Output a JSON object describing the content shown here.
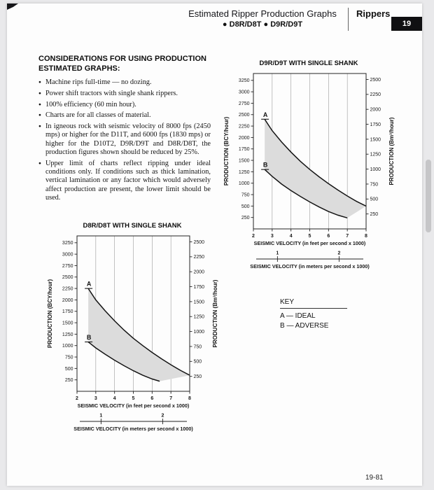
{
  "header": {
    "title": "Estimated Ripper Production Graphs",
    "models": "● D8R/D8T    ● D9R/D9T",
    "section": "Rippers",
    "tab_number": "19",
    "page_number": "19-81"
  },
  "considerations": {
    "heading": "CONSIDERATIONS FOR USING PRODUCTION ESTIMATED GRAPHS:",
    "items": [
      "Machine rips full-time — no dozing.",
      "Power shift tractors with single shank rippers.",
      "100% efficiency (60 min hour).",
      "Charts are for all classes of material.",
      "In igneous rock with seismic velocity of 8000 fps (2450 mps) or higher for the D11T, and 6000 fps (1830 mps) or higher for the D10T2, D9R/D9T and D8R/D8T, the production figures shown should be reduced by 25%.",
      "Upper limit of charts reflect ripping under ideal conditions only. If conditions such as thick lamination, vertical lamination or any factor which would adversely affect production are present, the lower limit should be used."
    ]
  },
  "key": {
    "title": "KEY",
    "entries": [
      "A — IDEAL",
      "B — ADVERSE"
    ]
  },
  "chart_data": [
    {
      "type": "line",
      "title": "D9R/D9T WITH SINGLE SHANK",
      "xlabel": "SEISMIC VELOCITY (in feet per second x 1000)",
      "xlabel_secondary": "SEISMIC VELOCITY (in meters per second x 1000)",
      "ylabel_left": "PRODUCTION (BCY/hour)",
      "ylabel_right": "PRODUCTION (Bm³/hour)",
      "xlim": [
        2,
        8
      ],
      "ylim": [
        0,
        3400
      ],
      "x_ticks": [
        2,
        3,
        4,
        5,
        6,
        7,
        8
      ],
      "y_ticks_left": [
        250,
        500,
        750,
        1000,
        1250,
        1500,
        1750,
        2000,
        2250,
        2500,
        2750,
        3000,
        3250
      ],
      "y_ticks_right": [
        250,
        500,
        750,
        1000,
        1250,
        1500,
        1750,
        2000,
        2250,
        2500
      ],
      "bcy_per_bm3": 1.308,
      "secondary_ticks": [
        1,
        2
      ],
      "fps_per_mps": 3.281,
      "grid": "vertical",
      "legend_position": "separate-key-box",
      "band_fill": "#dcdcdc",
      "series": [
        {
          "name": "A",
          "meaning": "IDEAL",
          "points": [
            [
              2.6,
              2400
            ],
            [
              3,
              2150
            ],
            [
              3.5,
              1900
            ],
            [
              4,
              1680
            ],
            [
              4.5,
              1480
            ],
            [
              5,
              1300
            ],
            [
              5.5,
              1140
            ],
            [
              6,
              990
            ],
            [
              6.5,
              850
            ],
            [
              7,
              720
            ],
            [
              7.5,
              600
            ],
            [
              8,
              500
            ]
          ]
        },
        {
          "name": "B",
          "meaning": "ADVERSE",
          "points": [
            [
              2.6,
              1300
            ],
            [
              3,
              1150
            ],
            [
              3.5,
              980
            ],
            [
              4,
              840
            ],
            [
              4.5,
              710
            ],
            [
              5,
              590
            ],
            [
              5.5,
              480
            ],
            [
              6,
              380
            ],
            [
              6.5,
              300
            ],
            [
              7,
              240
            ]
          ]
        }
      ]
    },
    {
      "type": "line",
      "title": "D8R/D8T WITH SINGLE SHANK",
      "xlabel": "SEISMIC VELOCITY (in feet per second x 1000)",
      "xlabel_secondary": "SEISMIC VELOCITY (in meters per second x 1000)",
      "ylabel_left": "PRODUCTION (BCY/hour)",
      "ylabel_right": "PRODUCTION (Bm³/hour)",
      "xlim": [
        2,
        8
      ],
      "ylim": [
        0,
        3400
      ],
      "x_ticks": [
        2,
        3,
        4,
        5,
        6,
        7,
        8
      ],
      "y_ticks_left": [
        250,
        500,
        750,
        1000,
        1250,
        1500,
        1750,
        2000,
        2250,
        2500,
        2750,
        3000,
        3250
      ],
      "y_ticks_right": [
        250,
        500,
        750,
        1000,
        1250,
        1500,
        1750,
        2000,
        2250,
        2500
      ],
      "bcy_per_bm3": 1.308,
      "secondary_ticks": [
        1,
        2
      ],
      "fps_per_mps": 3.281,
      "grid": "vertical",
      "legend_position": "separate-key-box",
      "band_fill": "#dcdcdc",
      "series": [
        {
          "name": "A",
          "meaning": "IDEAL",
          "points": [
            [
              2.6,
              2250
            ],
            [
              3,
              2000
            ],
            [
              3.5,
              1760
            ],
            [
              4,
              1540
            ],
            [
              4.5,
              1340
            ],
            [
              5,
              1160
            ],
            [
              5.5,
              1000
            ],
            [
              6,
              850
            ],
            [
              6.5,
              710
            ],
            [
              7,
              580
            ],
            [
              7.5,
              460
            ],
            [
              8,
              350
            ]
          ]
        },
        {
          "name": "B",
          "meaning": "ADVERSE",
          "points": [
            [
              2.6,
              1080
            ],
            [
              3,
              950
            ],
            [
              3.5,
              810
            ],
            [
              4,
              680
            ],
            [
              4.5,
              560
            ],
            [
              5,
              450
            ],
            [
              5.5,
              350
            ],
            [
              6,
              270
            ],
            [
              6.4,
              220
            ]
          ]
        }
      ]
    }
  ]
}
